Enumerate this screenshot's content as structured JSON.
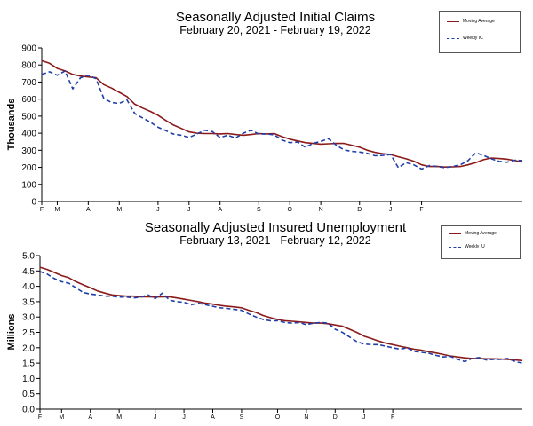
{
  "colors": {
    "moving_average": "#8b1a1a",
    "weekly": "#1f3fa8",
    "axis": "#000000"
  },
  "chart_data": [
    {
      "type": "line",
      "title": "Seasonally Adjusted Initial Claims",
      "subtitle": "February 20, 2021 - February 19, 2022",
      "ylabel": "Thousands",
      "xlabel": "",
      "ylim": [
        0,
        900
      ],
      "yticks": [
        "0",
        "100",
        "200",
        "300",
        "400",
        "500",
        "600",
        "700",
        "800",
        "900"
      ],
      "yticks_values": [
        0,
        100,
        200,
        300,
        400,
        500,
        600,
        700,
        800,
        900
      ],
      "month_ticks": [
        "F",
        "M",
        "A",
        "M",
        "J",
        "J",
        "A",
        "S",
        "O",
        "N",
        "D",
        "J",
        "F"
      ],
      "month_tick_week_index": [
        0,
        2,
        6,
        10,
        15,
        19,
        23,
        28,
        32,
        36,
        41,
        45,
        49
      ],
      "legend": {
        "placement": "top-right",
        "entries": [
          "Moving Average",
          "Weekly IC"
        ]
      },
      "grid": false,
      "series": [
        {
          "name": "Moving Average",
          "style": "solid",
          "values": [
            825,
            810,
            780,
            765,
            745,
            735,
            730,
            725,
            685,
            665,
            640,
            615,
            570,
            548,
            528,
            505,
            475,
            448,
            428,
            408,
            400,
            398,
            398,
            396,
            398,
            392,
            388,
            392,
            398,
            396,
            398,
            380,
            365,
            355,
            345,
            340,
            336,
            338,
            340,
            340,
            330,
            318,
            300,
            288,
            280,
            275,
            262,
            250,
            236,
            215,
            205,
            205,
            202,
            203,
            205,
            215,
            228,
            245,
            255,
            252,
            248,
            240,
            232
          ]
        },
        {
          "name": "Weekly IC",
          "style": "dashed",
          "values": [
            745,
            760,
            740,
            765,
            660,
            725,
            740,
            720,
            605,
            580,
            575,
            595,
            515,
            490,
            465,
            435,
            415,
            395,
            388,
            375,
            395,
            418,
            410,
            375,
            388,
            372,
            400,
            418,
            395,
            396,
            390,
            360,
            345,
            348,
            318,
            340,
            352,
            368,
            330,
            302,
            294,
            290,
            282,
            268,
            270,
            275,
            198,
            228,
            215,
            190,
            210,
            205,
            198,
            205,
            215,
            240,
            285,
            270,
            250,
            235,
            230,
            242,
            240
          ]
        }
      ]
    },
    {
      "type": "line",
      "title": "Seasonally Adjusted Insured Unemployment",
      "subtitle": "February 13, 2021 - February 12, 2022",
      "ylabel": "Millions",
      "xlabel": "",
      "ylim": [
        0,
        5
      ],
      "yticks": [
        "0.0",
        "0.5",
        "1.0",
        "1.5",
        "2.0",
        "2.5",
        "3.0",
        "3.5",
        "4.0",
        "4.5",
        "5.0"
      ],
      "yticks_values": [
        0,
        0.5,
        1,
        1.5,
        2,
        2.5,
        3,
        3.5,
        4,
        4.5,
        5
      ],
      "month_ticks": [
        "F",
        "M",
        "A",
        "M",
        "J",
        "J",
        "A",
        "S",
        "O",
        "N",
        "D",
        "J",
        "F"
      ],
      "month_tick_week_index": [
        0,
        3,
        7,
        11,
        16,
        20,
        24,
        28,
        33,
        37,
        41,
        45,
        49
      ],
      "legend": {
        "placement": "top-right",
        "entries": [
          "Moving Average",
          "Weekly IU"
        ]
      },
      "grid": false,
      "series": [
        {
          "name": "Moving Average",
          "style": "solid",
          "values": [
            4.62,
            4.55,
            4.45,
            4.35,
            4.28,
            4.15,
            4.05,
            3.95,
            3.85,
            3.78,
            3.72,
            3.7,
            3.68,
            3.68,
            3.66,
            3.66,
            3.65,
            3.66,
            3.66,
            3.62,
            3.58,
            3.54,
            3.5,
            3.45,
            3.42,
            3.38,
            3.35,
            3.33,
            3.3,
            3.22,
            3.15,
            3.05,
            2.98,
            2.92,
            2.88,
            2.86,
            2.84,
            2.82,
            2.8,
            2.8,
            2.78,
            2.74,
            2.7,
            2.6,
            2.5,
            2.38,
            2.3,
            2.22,
            2.15,
            2.1,
            2.05,
            2.0,
            1.95,
            1.92,
            1.87,
            1.83,
            1.78,
            1.73,
            1.7,
            1.67,
            1.65,
            1.65,
            1.64,
            1.64,
            1.63,
            1.62,
            1.6,
            1.58
          ]
        },
        {
          "name": "Weekly IU",
          "style": "dashed",
          "values": [
            4.48,
            4.4,
            4.25,
            4.15,
            4.1,
            3.95,
            3.8,
            3.75,
            3.72,
            3.68,
            3.68,
            3.65,
            3.65,
            3.62,
            3.65,
            3.72,
            3.6,
            3.78,
            3.55,
            3.5,
            3.48,
            3.4,
            3.45,
            3.4,
            3.35,
            3.3,
            3.28,
            3.25,
            3.22,
            3.1,
            3.0,
            2.92,
            2.88,
            2.88,
            2.82,
            2.8,
            2.82,
            2.75,
            2.8,
            2.82,
            2.8,
            2.6,
            2.5,
            2.35,
            2.2,
            2.12,
            2.1,
            2.1,
            2.05,
            2.0,
            1.95,
            2.0,
            1.88,
            1.85,
            1.82,
            1.75,
            1.7,
            1.72,
            1.62,
            1.55,
            1.65,
            1.68,
            1.6,
            1.62,
            1.62,
            1.65,
            1.55,
            1.5
          ]
        }
      ]
    }
  ]
}
